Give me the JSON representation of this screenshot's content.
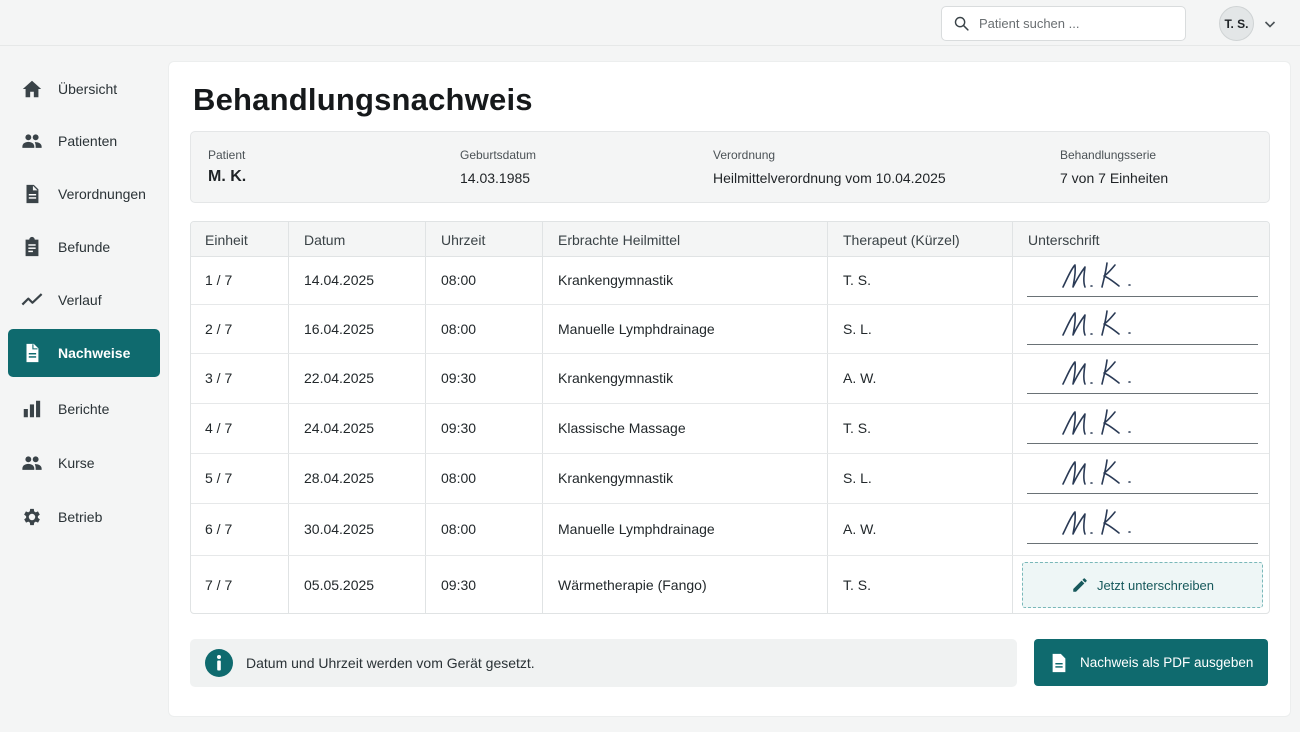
{
  "search": {
    "placeholder": "Patient suchen ..."
  },
  "user": {
    "initials": "T. S."
  },
  "sidebar": {
    "items": [
      {
        "label": "Übersicht",
        "icon": "home-icon"
      },
      {
        "label": "Patienten",
        "icon": "people-icon"
      },
      {
        "label": "Verordnungen",
        "icon": "document-icon"
      },
      {
        "label": "Befunde",
        "icon": "clipboard-icon"
      },
      {
        "label": "Verlauf",
        "icon": "trend-icon"
      },
      {
        "label": "Nachweise",
        "icon": "document-icon",
        "active": true
      },
      {
        "label": "Berichte",
        "icon": "bar-chart-icon"
      },
      {
        "label": "Kurse",
        "icon": "group-icon"
      },
      {
        "label": "Betrieb",
        "icon": "gear-icon"
      }
    ]
  },
  "page": {
    "title": "Behandlungsnachweis"
  },
  "info": {
    "patient_label": "Patient",
    "patient_value": "M. K.",
    "birth_label": "Geburtsdatum",
    "birth_value": "14.03.1985",
    "prescription_label": "Verordnung",
    "prescription_value": "Heilmittelverordnung vom 10.04.2025",
    "series_label": "Behandlungsserie",
    "series_value": "7 von 7 Einheiten"
  },
  "table": {
    "headers": [
      "Einheit",
      "Datum",
      "Uhrzeit",
      "Erbrachte Heilmittel",
      "Therapeut (Kürzel)",
      "Unterschrift"
    ],
    "rows": [
      {
        "unit": "1 / 7",
        "date": "14.04.2025",
        "time": "08:00",
        "remedy": "Krankengymnastik",
        "therapist": "T. S.",
        "signature": "M. K."
      },
      {
        "unit": "2 / 7",
        "date": "16.04.2025",
        "time": "08:00",
        "remedy": "Manuelle Lymphdrainage",
        "therapist": "S. L.",
        "signature": "M. K."
      },
      {
        "unit": "3 / 7",
        "date": "22.04.2025",
        "time": "09:30",
        "remedy": "Krankengymnastik",
        "therapist": "A. W.",
        "signature": "M. K."
      },
      {
        "unit": "4 / 7",
        "date": "24.04.2025",
        "time": "09:30",
        "remedy": "Klassische Massage",
        "therapist": "T. S.",
        "signature": "M. K."
      },
      {
        "unit": "5 / 7",
        "date": "28.04.2025",
        "time": "08:00",
        "remedy": "Krankengymnastik",
        "therapist": "S. L.",
        "signature": "M. K."
      },
      {
        "unit": "6 / 7",
        "date": "30.04.2025",
        "time": "08:00",
        "remedy": "Manuelle Lymphdrainage",
        "therapist": "A. W.",
        "signature": "M. K."
      },
      {
        "unit": "7 / 7",
        "date": "05.05.2025",
        "time": "09:30",
        "remedy": "Wärmetherapie (Fango)",
        "therapist": "T. S.",
        "signature": ""
      }
    ],
    "sign_button_label": "Jetzt unterschreiben"
  },
  "notice": {
    "text": "Datum und Uhrzeit werden vom Gerät gesetzt."
  },
  "actions": {
    "pdf_label": "Nachweis als PDF ausgeben"
  },
  "colors": {
    "accent": "#0f6a6e",
    "background": "#f4f5f5",
    "card": "#ffffff"
  }
}
